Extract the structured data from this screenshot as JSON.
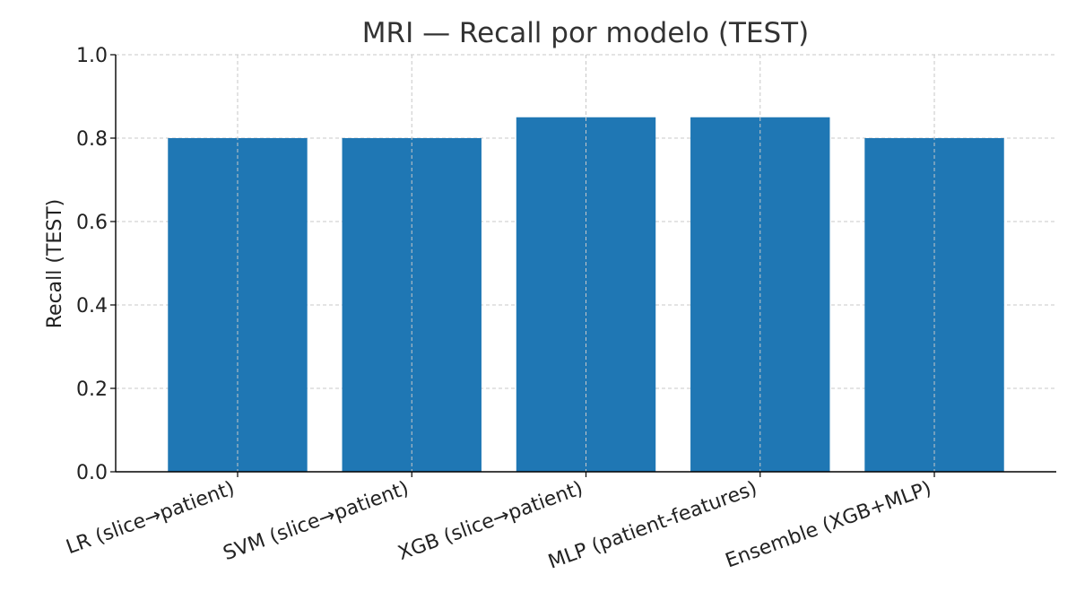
{
  "chart_data": {
    "type": "bar",
    "title": "MRI — Recall por modelo (TEST)",
    "xlabel": "",
    "ylabel": "Recall (TEST)",
    "categories": [
      "LR (slice→patient)",
      "SVM (slice→patient)",
      "XGB (slice→patient)",
      "MLP (patient-features)",
      "Ensemble (XGB+MLP)"
    ],
    "values": [
      0.8,
      0.8,
      0.85,
      0.85,
      0.8
    ],
    "ylim": [
      0,
      1.0
    ],
    "yticks": [
      "0.0",
      "0.2",
      "0.4",
      "0.6",
      "0.8",
      "1.0"
    ],
    "grid": true,
    "legend": "none",
    "colors": {
      "bar": "#1f77b4",
      "grid": "#c8c8c8",
      "axis": "#000000",
      "title": "#333333",
      "text": "#222222"
    }
  }
}
